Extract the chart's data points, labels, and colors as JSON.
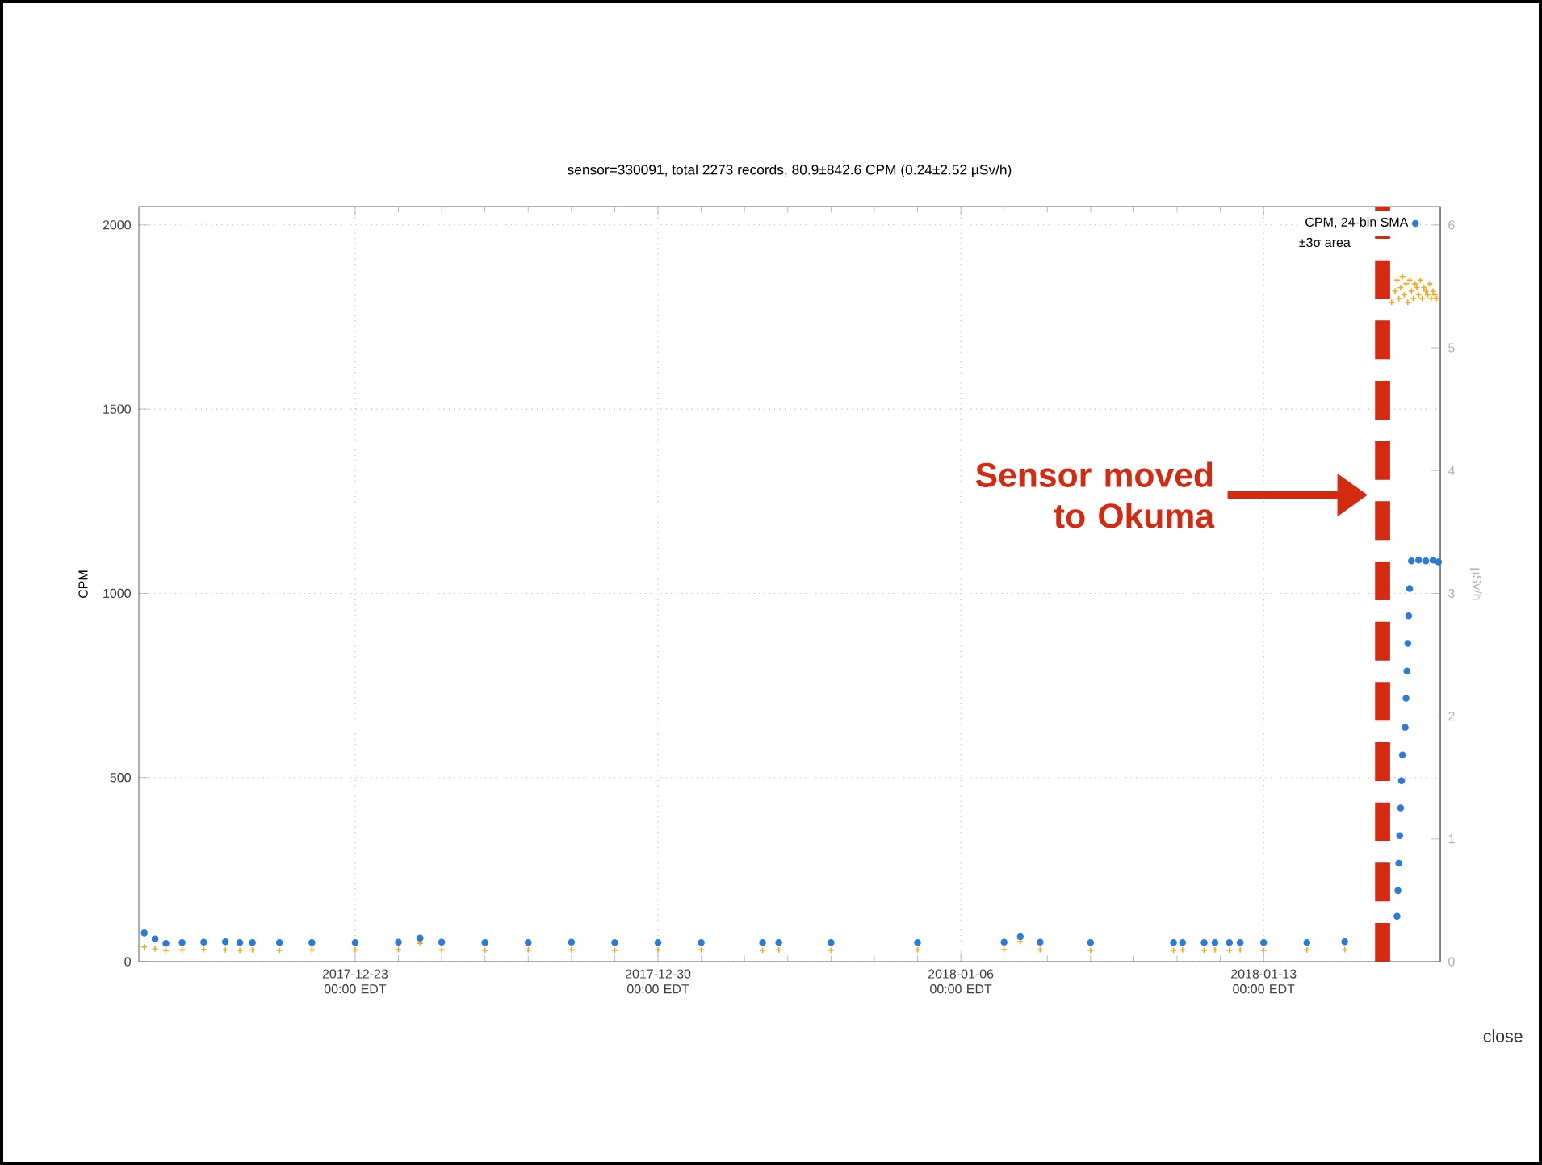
{
  "chart_data": {
    "type": "scatter",
    "title": "sensor=330091, total 2273 records, 80.9±842.6 CPM (0.24±2.52 µSv/h)",
    "ylabel": "CPM",
    "y2label": "µSv/h",
    "xlim": [
      "2017-12-18T00:00",
      "2018-01-17T02:00"
    ],
    "xticks": [
      {
        "value": "2017-12-23T00:00",
        "label": "2017-12-23 00:00 EDT"
      },
      {
        "value": "2017-12-30T00:00",
        "label": "2017-12-30 00:00 EDT"
      },
      {
        "value": "2018-01-06T00:00",
        "label": "2018-01-06 00:00 EDT"
      },
      {
        "value": "2018-01-13T00:00",
        "label": "2018-01-13 00:00 EDT"
      }
    ],
    "ylim": [
      0,
      2050
    ],
    "yticks": [
      0,
      500,
      1000,
      1500,
      2000
    ],
    "y2lim": [
      0,
      6.15
    ],
    "y2ticks": [
      0,
      1,
      2,
      3,
      4,
      5,
      6
    ],
    "grid": true,
    "legend": "top right",
    "series": [
      {
        "color": "#f5a623",
        "marker": "cross",
        "x": [
          "2017-12-18T03:00",
          "2017-12-18T09:00",
          "2017-12-18T15:00",
          "2017-12-19T00:00",
          "2017-12-19T12:00",
          "2017-12-20T00:00",
          "2017-12-20T08:00",
          "2017-12-20T10:00",
          "2017-12-20T15:00",
          "2017-12-21T06:00",
          "2017-12-22T00:00",
          "2017-12-23T00:00",
          "2017-12-24T00:00",
          "2017-12-24T12:00",
          "2017-12-25T00:00",
          "2017-12-26T00:00",
          "2017-12-27T00:00",
          "2017-12-28T00:00",
          "2017-12-29T00:00",
          "2017-12-30T00:00",
          "2017-12-31T00:00",
          "2018-01-01T10:00",
          "2018-01-01T14:00",
          "2018-01-01T19:00",
          "2018-01-03T00:00",
          "2018-01-05T00:00",
          "2018-01-07T00:00",
          "2018-01-07T09:00",
          "2018-01-07T20:00",
          "2018-01-09T00:00",
          "2018-01-10T22:00",
          "2018-01-11T00:00",
          "2018-01-11T03:00",
          "2018-01-11T15:00",
          "2018-01-11T18:00",
          "2018-01-11T21:00",
          "2018-01-12T05:00",
          "2018-01-12T08:00",
          "2018-01-12T11:00",
          "2018-01-13T00:00",
          "2018-01-14T00:00",
          "2018-01-14T21:00",
          "2018-01-15T12:00",
          "2018-01-15T23:00",
          "2018-01-16T01:00",
          "2018-01-16T02:00",
          "2018-01-16T03:00",
          "2018-01-16T04:00",
          "2018-01-16T05:00",
          "2018-01-16T06:00",
          "2018-01-16T07:00",
          "2018-01-16T08:00",
          "2018-01-16T09:00",
          "2018-01-16T10:00",
          "2018-01-16T11:00",
          "2018-01-16T12:00",
          "2018-01-16T13:00",
          "2018-01-16T14:00",
          "2018-01-16T15:00",
          "2018-01-16T16:00",
          "2018-01-16T17:00",
          "2018-01-16T18:00",
          "2018-01-16T19:00",
          "2018-01-16T20:00",
          "2018-01-16T21:00",
          "2018-01-16T22:00",
          "2018-01-16T23:00",
          "2018-01-17T00:00"
        ],
        "values": [
          40,
          35,
          30,
          32,
          33,
          32,
          31,
          null,
          32,
          31,
          32,
          32,
          33,
          50,
          32,
          31,
          32,
          32,
          31,
          32,
          32,
          31,
          null,
          32,
          31,
          32,
          33,
          55,
          32,
          31,
          31,
          null,
          32,
          31,
          null,
          32,
          31,
          null,
          32,
          31,
          32,
          33,
          null,
          1790,
          1820,
          1850,
          1800,
          1830,
          1860,
          1810,
          1840,
          1790,
          1850,
          1820,
          1800,
          1840,
          1830,
          1810,
          1850,
          1800,
          1830,
          1820,
          1810,
          1840,
          1800,
          1820,
          1810,
          1800
        ]
      },
      {
        "name": "CPM, 24-bin SMA",
        "color": "#2b7bd9",
        "marker": "circle",
        "x": [
          "2017-12-18T03:00",
          "2017-12-18T09:00",
          "2017-12-18T15:00",
          "2017-12-19T00:00",
          "2017-12-19T12:00",
          "2017-12-20T00:00",
          "2017-12-20T08:00",
          "2017-12-20T10:00",
          "2017-12-20T15:00",
          "2017-12-21T06:00",
          "2017-12-22T00:00",
          "2017-12-23T00:00",
          "2017-12-24T00:00",
          "2017-12-24T12:00",
          "2017-12-25T00:00",
          "2017-12-26T00:00",
          "2017-12-27T00:00",
          "2017-12-28T00:00",
          "2017-12-29T00:00",
          "2017-12-30T00:00",
          "2017-12-31T00:00",
          "2018-01-01T10:00",
          "2018-01-01T14:00",
          "2018-01-01T19:00",
          "2018-01-03T00:00",
          "2018-01-05T00:00",
          "2018-01-07T00:00",
          "2018-01-07T09:00",
          "2018-01-07T20:00",
          "2018-01-09T00:00",
          "2018-01-10T22:00",
          "2018-01-11T00:00",
          "2018-01-11T03:00",
          "2018-01-11T15:00",
          "2018-01-11T18:00",
          "2018-01-11T21:00",
          "2018-01-12T05:00",
          "2018-01-12T08:00",
          "2018-01-12T11:00",
          "2018-01-13T00:00",
          "2018-01-14T00:00",
          "2018-01-14T21:00",
          "2018-01-15T12:00",
          "2018-01-16T02:00",
          "2018-01-16T02:30",
          "2018-01-16T03:00",
          "2018-01-16T03:30",
          "2018-01-16T04:00",
          "2018-01-16T04:30",
          "2018-01-16T05:00",
          "2018-01-16T06:30",
          "2018-01-16T07:00",
          "2018-01-16T07:30",
          "2018-01-16T08:00",
          "2018-01-16T08:30",
          "2018-01-16T09:00",
          "2018-01-16T10:00",
          "2018-01-16T14:00",
          "2018-01-16T18:00",
          "2018-01-16T22:00",
          "2018-01-17T01:00"
        ],
        "values": [
          78,
          62,
          50,
          52,
          53,
          54,
          52,
          null,
          52,
          52,
          52,
          52,
          53,
          64,
          53,
          52,
          52,
          53,
          52,
          52,
          52,
          52,
          null,
          52,
          52,
          52,
          53,
          68,
          53,
          52,
          52,
          null,
          52,
          52,
          null,
          52,
          52,
          null,
          52,
          52,
          52,
          54,
          null,
          123,
          193,
          267,
          342,
          417,
          491,
          561,
          636,
          715,
          789,
          864,
          939,
          1013,
          1088,
          1090,
          1088,
          1090,
          1085
        ]
      }
    ],
    "ref_lines": [
      {
        "axis": "x",
        "value": "2018-01-15T18:00",
        "label": "Sensor moved to Okuma",
        "color": "#d42a12",
        "line_style": "dashed"
      }
    ],
    "annotations": [
      "±3σ area",
      "close"
    ]
  }
}
